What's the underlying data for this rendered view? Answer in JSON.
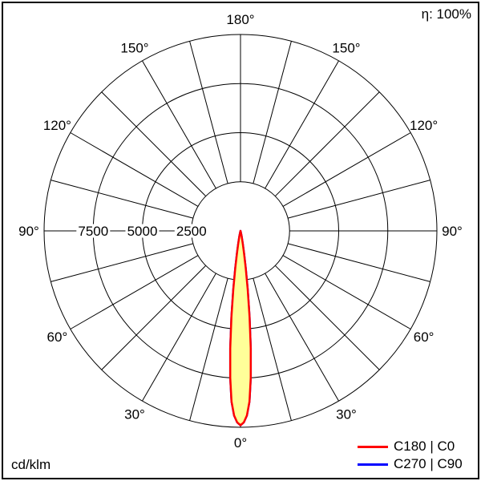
{
  "page": {
    "efficiency": "η: 100%",
    "unit": "cd/klm"
  },
  "chart_data": {
    "type": "line",
    "subtype": "polar photometric luminous intensity distribution",
    "title": "",
    "unit_label": "cd/klm",
    "efficiency": "η: 100%",
    "r_axis": {
      "max": 10000,
      "ticks": [
        7500,
        5000,
        2500
      ],
      "tick_labels": [
        "7500",
        "5000",
        "2500"
      ],
      "unit": "cd/klm"
    },
    "angle_axis": {
      "labels_deg": [
        0,
        30,
        60,
        90,
        120,
        150,
        180
      ],
      "labels": [
        "0°",
        "30°",
        "60°",
        "90°",
        "120°",
        "150°",
        "180°"
      ],
      "spoke_step_deg": 15,
      "zero_direction": "down"
    },
    "grid": true,
    "legend_position": "bottom-right",
    "legend": [
      {
        "label": "C180 | C0",
        "color": "#ff0000"
      },
      {
        "label": "C270 | C90",
        "color": "#0000ff"
      }
    ],
    "series": [
      {
        "name": "C180 | C0",
        "color": "#ff0000",
        "fill": "#ffff99",
        "points": [
          [
            -20,
            0
          ],
          [
            -16,
            30
          ],
          [
            -14,
            90
          ],
          [
            -12,
            250
          ],
          [
            -10,
            650
          ],
          [
            -9,
            1150
          ],
          [
            -8,
            1900
          ],
          [
            -7,
            3000
          ],
          [
            -6,
            4400
          ],
          [
            -5,
            6000
          ],
          [
            -4,
            7500
          ],
          [
            -3,
            8700
          ],
          [
            -2,
            9400
          ],
          [
            -1,
            9750
          ],
          [
            0,
            9900
          ],
          [
            1,
            9750
          ],
          [
            2,
            9400
          ],
          [
            3,
            8700
          ],
          [
            4,
            7500
          ],
          [
            5,
            6000
          ],
          [
            6,
            4400
          ],
          [
            7,
            3000
          ],
          [
            8,
            1900
          ],
          [
            9,
            1150
          ],
          [
            10,
            650
          ],
          [
            12,
            250
          ],
          [
            14,
            90
          ],
          [
            16,
            30
          ],
          [
            20,
            0
          ]
        ]
      },
      {
        "name": "C270 | C90",
        "color": "#0000ff",
        "fill": "#ffff99",
        "points": [
          [
            -20,
            0
          ],
          [
            -16,
            30
          ],
          [
            -14,
            90
          ],
          [
            -12,
            250
          ],
          [
            -10,
            650
          ],
          [
            -9,
            1150
          ],
          [
            -8,
            1900
          ],
          [
            -7,
            3000
          ],
          [
            -6,
            4400
          ],
          [
            -5,
            6000
          ],
          [
            -4,
            7500
          ],
          [
            -3,
            8700
          ],
          [
            -2,
            9400
          ],
          [
            -1,
            9750
          ],
          [
            0,
            9900
          ],
          [
            1,
            9750
          ],
          [
            2,
            9400
          ],
          [
            3,
            8700
          ],
          [
            4,
            7500
          ],
          [
            5,
            6000
          ],
          [
            6,
            4400
          ],
          [
            7,
            3000
          ],
          [
            8,
            1900
          ],
          [
            9,
            1150
          ],
          [
            10,
            650
          ],
          [
            12,
            250
          ],
          [
            14,
            90
          ],
          [
            16,
            30
          ],
          [
            20,
            0
          ]
        ]
      }
    ]
  }
}
